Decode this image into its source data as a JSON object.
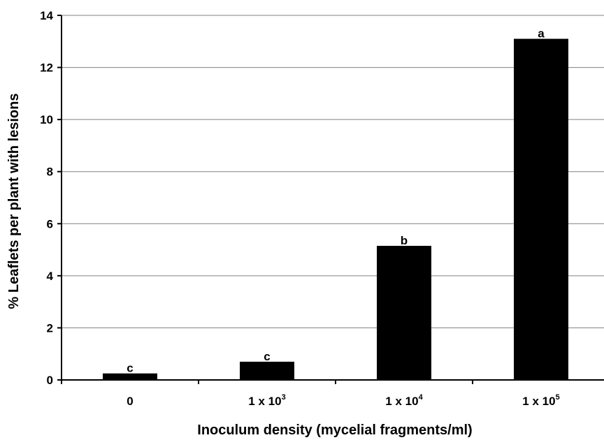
{
  "chart_data": {
    "type": "bar",
    "categories": [
      {
        "base": "0",
        "exponent": ""
      },
      {
        "base": "1 x 10",
        "exponent": "3"
      },
      {
        "base": "1 x 10",
        "exponent": "4"
      },
      {
        "base": "1 x 10",
        "exponent": "5"
      }
    ],
    "values": [
      0.25,
      0.7,
      5.15,
      13.1
    ],
    "data_labels": [
      "c",
      "c",
      "b",
      "a"
    ],
    "xlabel": "Inoculum density (mycelial fragments/ml)",
    "ylabel": "% Leaflets per plant with lesions",
    "ylim": [
      0,
      14
    ],
    "yticks": [
      0,
      2,
      4,
      6,
      8,
      10,
      12,
      14
    ],
    "grid": true,
    "bar_color": "#000000",
    "grid_color": "#808080"
  }
}
